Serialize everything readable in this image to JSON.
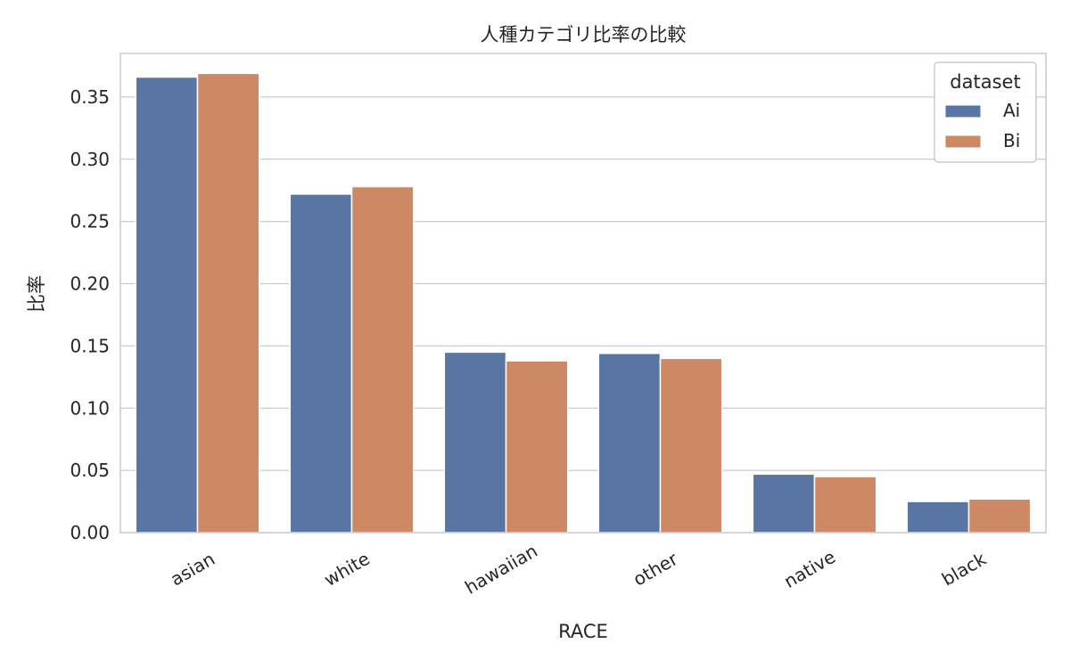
{
  "chart_data": {
    "type": "bar",
    "title": "人種カテゴリ比率の比較",
    "xlabel": "RACE",
    "ylabel": "比率",
    "categories": [
      "asian",
      "white",
      "hawaiian",
      "other",
      "native",
      "black"
    ],
    "series": [
      {
        "name": "Ai",
        "color": "#5875a4",
        "values": [
          0.366,
          0.272,
          0.145,
          0.144,
          0.047,
          0.025
        ]
      },
      {
        "name": "Bi",
        "color": "#cc8963",
        "values": [
          0.369,
          0.278,
          0.138,
          0.14,
          0.045,
          0.027
        ]
      }
    ],
    "ylim": [
      0,
      0.385
    ],
    "yticks": [
      "0.00",
      "0.05",
      "0.10",
      "0.15",
      "0.20",
      "0.25",
      "0.30",
      "0.35"
    ],
    "grid": true,
    "legend": {
      "title": "dataset",
      "position": "top-right"
    }
  }
}
